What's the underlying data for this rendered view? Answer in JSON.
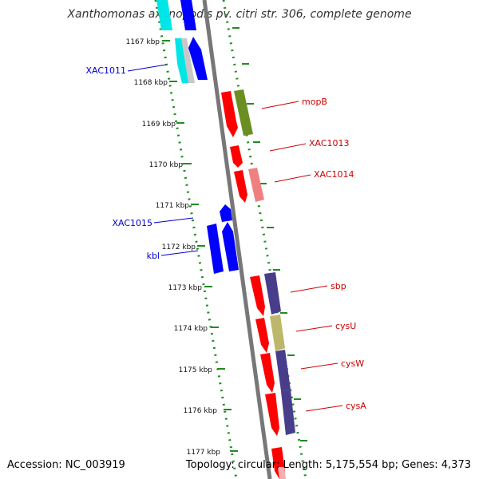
{
  "title": "Xanthomonas axonopodis pv. citri str. 306, complete genome",
  "footer": {
    "accession_label": "Accession:",
    "accession": "NC_003919",
    "topology_text": "Topology: circular; Length: 5,175,554 bp; Genes: 4,373"
  },
  "ticks": [
    {
      "kbp": 1167,
      "label": "1167 kbp"
    },
    {
      "kbp": 1168,
      "label": "1168 kbp"
    },
    {
      "kbp": 1169,
      "label": "1169 kbp"
    },
    {
      "kbp": 1170,
      "label": "1170 kbp"
    },
    {
      "kbp": 1171,
      "label": "1171 kbp"
    },
    {
      "kbp": 1172,
      "label": "1172 kbp"
    },
    {
      "kbp": 1173,
      "label": "1173 kbp"
    },
    {
      "kbp": 1174,
      "label": "1174 kbp"
    },
    {
      "kbp": 1175,
      "label": "1175 kbp"
    },
    {
      "kbp": 1176,
      "label": "1176 kbp"
    },
    {
      "kbp": 1177,
      "label": "1177 kbp"
    }
  ],
  "colors": {
    "backbone": "#777777",
    "dots": "#228B22",
    "forward_gene": "#ff0000",
    "reverse_gene": "#0000ff",
    "forward_label": "#cc0000",
    "reverse_label": "#0000cc",
    "cyan_gene": "#00e5e5",
    "gray_gene": "#c8c8c8",
    "olive_cog": "#6b8e23",
    "pink_cog": "#f08080",
    "slate_cog": "#483d8b",
    "khaki_cog": "#bdb76b"
  },
  "gene_labels": [
    {
      "name": "XAC1011",
      "strand": "reverse"
    },
    {
      "name": "mopB",
      "strand": "forward"
    },
    {
      "name": "XAC1013",
      "strand": "forward"
    },
    {
      "name": "XAC1014",
      "strand": "forward"
    },
    {
      "name": "XAC1015",
      "strand": "reverse"
    },
    {
      "name": "kbl",
      "strand": "reverse"
    },
    {
      "name": "sbp",
      "strand": "forward"
    },
    {
      "name": "cysU",
      "strand": "forward"
    },
    {
      "name": "cysW",
      "strand": "forward"
    },
    {
      "name": "cysA",
      "strand": "forward"
    }
  ]
}
